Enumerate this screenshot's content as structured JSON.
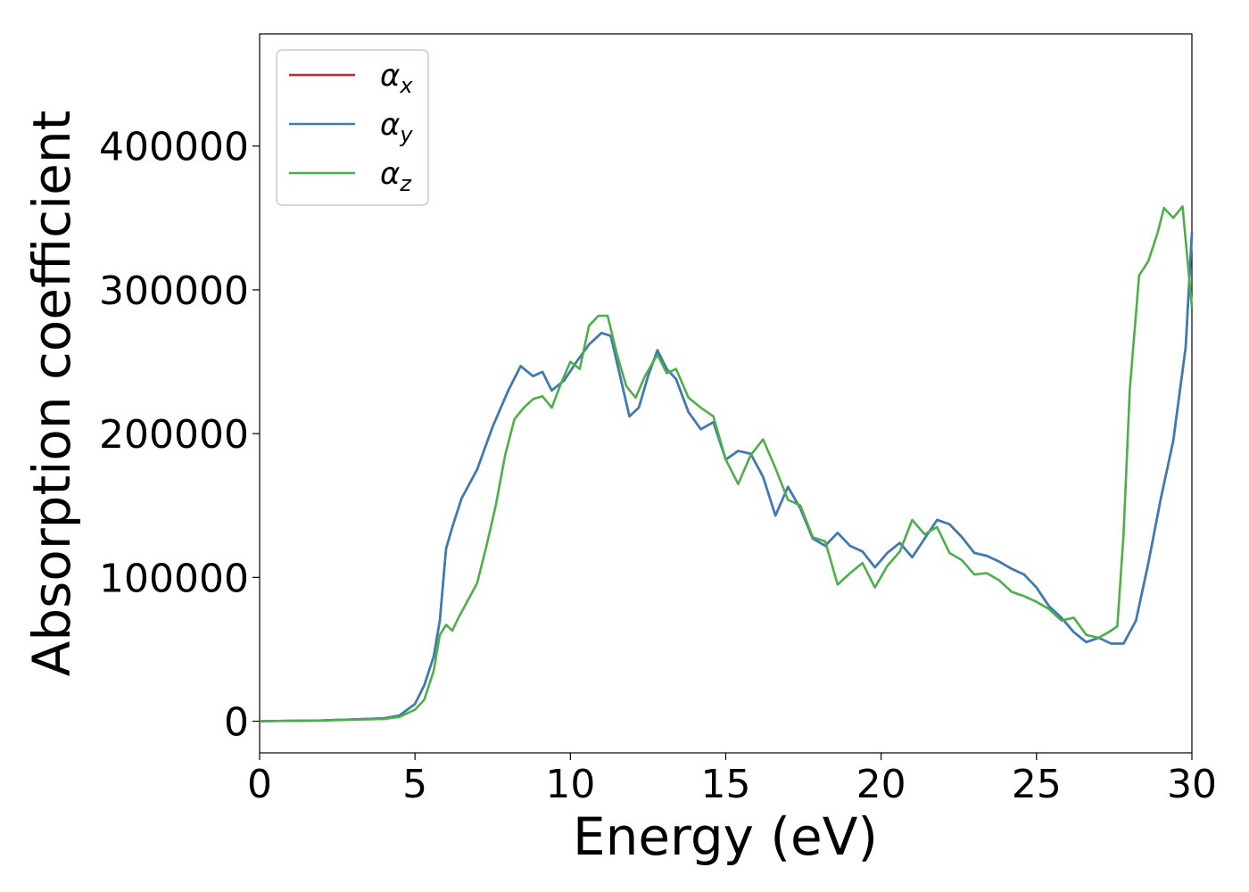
{
  "chart_data": {
    "type": "line",
    "title": "",
    "xlabel": "Energy (eV)",
    "ylabel": "Absorption coefficient",
    "xlim": [
      0,
      30
    ],
    "ylim": [
      -22000,
      478000
    ],
    "xticks": [
      0,
      5,
      10,
      15,
      20,
      25,
      30
    ],
    "yticks": [
      0,
      100000,
      200000,
      300000,
      400000
    ],
    "grid": false,
    "legend_position": "top-left",
    "series": [
      {
        "name": "α",
        "subscript": "x",
        "color": "#e41a1c",
        "x": [
          0,
          2,
          4,
          4.5,
          5,
          5.3,
          5.6,
          5.8,
          6,
          6.2,
          6.5,
          7,
          7.5,
          8,
          8.4,
          8.8,
          9.1,
          9.4,
          9.8,
          10.2,
          10.6,
          11,
          11.3,
          11.6,
          11.9,
          12.2,
          12.5,
          12.8,
          13.1,
          13.4,
          13.8,
          14.2,
          14.6,
          15,
          15.4,
          15.8,
          16.2,
          16.6,
          17,
          17.4,
          17.8,
          18.2,
          18.6,
          19,
          19.4,
          19.8,
          20.2,
          20.6,
          21,
          21.4,
          21.8,
          22.2,
          22.6,
          23,
          23.4,
          23.8,
          24.2,
          24.6,
          25,
          25.4,
          25.8,
          26.2,
          26.6,
          27,
          27.4,
          27.8,
          28.2,
          28.6,
          29,
          29.4,
          29.8,
          30
        ],
        "values": [
          0,
          500,
          2000,
          4000,
          12000,
          25000,
          45000,
          70000,
          120000,
          135000,
          155000,
          175000,
          205000,
          230000,
          247000,
          240000,
          243000,
          230000,
          237000,
          250000,
          262000,
          270000,
          268000,
          240000,
          212000,
          218000,
          240000,
          258000,
          245000,
          238000,
          215000,
          203000,
          208000,
          182000,
          188000,
          186000,
          170000,
          143000,
          163000,
          148000,
          127000,
          122000,
          131000,
          122000,
          118000,
          107000,
          117000,
          124000,
          114000,
          127000,
          140000,
          137000,
          128000,
          117000,
          115000,
          111000,
          106000,
          102000,
          93000,
          80000,
          72000,
          62000,
          55000,
          58000,
          54000,
          54000,
          70000,
          110000,
          155000,
          195000,
          260000,
          340000
        ]
      },
      {
        "name": "α",
        "subscript": "y",
        "color": "#377eb8",
        "x": [
          0,
          2,
          4,
          4.5,
          5,
          5.3,
          5.6,
          5.8,
          6,
          6.2,
          6.5,
          7,
          7.5,
          8,
          8.4,
          8.8,
          9.1,
          9.4,
          9.8,
          10.2,
          10.6,
          11,
          11.3,
          11.6,
          11.9,
          12.2,
          12.5,
          12.8,
          13.1,
          13.4,
          13.8,
          14.2,
          14.6,
          15,
          15.4,
          15.8,
          16.2,
          16.6,
          17,
          17.4,
          17.8,
          18.2,
          18.6,
          19,
          19.4,
          19.8,
          20.2,
          20.6,
          21,
          21.4,
          21.8,
          22.2,
          22.6,
          23,
          23.4,
          23.8,
          24.2,
          24.6,
          25,
          25.4,
          25.8,
          26.2,
          26.6,
          27,
          27.4,
          27.8,
          28.2,
          28.6,
          29,
          29.4,
          29.8,
          30
        ],
        "values": [
          0,
          500,
          2000,
          4000,
          12000,
          25000,
          45000,
          70000,
          120000,
          135000,
          155000,
          175000,
          205000,
          230000,
          247000,
          240000,
          243000,
          230000,
          237000,
          250000,
          262000,
          270000,
          268000,
          240000,
          212000,
          218000,
          240000,
          258000,
          245000,
          238000,
          215000,
          203000,
          208000,
          182000,
          188000,
          186000,
          170000,
          143000,
          163000,
          148000,
          127000,
          122000,
          131000,
          122000,
          118000,
          107000,
          117000,
          124000,
          114000,
          127000,
          140000,
          137000,
          128000,
          117000,
          115000,
          111000,
          106000,
          102000,
          93000,
          80000,
          72000,
          62000,
          55000,
          58000,
          54000,
          54000,
          70000,
          110000,
          155000,
          195000,
          260000,
          340000
        ]
      },
      {
        "name": "α",
        "subscript": "z",
        "color": "#4daf4a",
        "x": [
          0,
          2,
          4,
          4.5,
          5,
          5.3,
          5.6,
          5.8,
          6,
          6.2,
          6.4,
          6.7,
          7,
          7.3,
          7.6,
          7.9,
          8.2,
          8.5,
          8.8,
          9.1,
          9.4,
          9.7,
          10,
          10.3,
          10.6,
          10.9,
          11.2,
          11.5,
          11.8,
          12.1,
          12.4,
          12.8,
          13.1,
          13.4,
          13.8,
          14.2,
          14.6,
          15,
          15.4,
          15.8,
          16.2,
          16.6,
          17,
          17.4,
          17.8,
          18.2,
          18.6,
          19,
          19.4,
          19.8,
          20.2,
          20.6,
          21,
          21.4,
          21.8,
          22.2,
          22.6,
          23,
          23.4,
          23.8,
          24.2,
          24.6,
          25,
          25.4,
          25.8,
          26.2,
          26.6,
          27,
          27.4,
          27.6,
          27.8,
          28,
          28.3,
          28.6,
          28.9,
          29.1,
          29.4,
          29.7,
          30
        ],
        "values": [
          0,
          500,
          1500,
          3000,
          8000,
          15000,
          35000,
          60000,
          67000,
          63000,
          72000,
          84000,
          96000,
          122000,
          150000,
          185000,
          210000,
          218000,
          224000,
          226000,
          218000,
          235000,
          250000,
          245000,
          275000,
          282000,
          282000,
          255000,
          233000,
          225000,
          240000,
          255000,
          242000,
          245000,
          225000,
          218000,
          212000,
          182000,
          165000,
          185000,
          196000,
          176000,
          154000,
          150000,
          128000,
          125000,
          95000,
          103000,
          110000,
          93000,
          108000,
          118000,
          140000,
          130000,
          135000,
          117000,
          112000,
          102000,
          103000,
          98000,
          90000,
          87000,
          83000,
          78000,
          70000,
          72000,
          60000,
          58000,
          63000,
          66000,
          130000,
          230000,
          310000,
          320000,
          340000,
          357000,
          350000,
          358000,
          288000
        ]
      }
    ]
  }
}
